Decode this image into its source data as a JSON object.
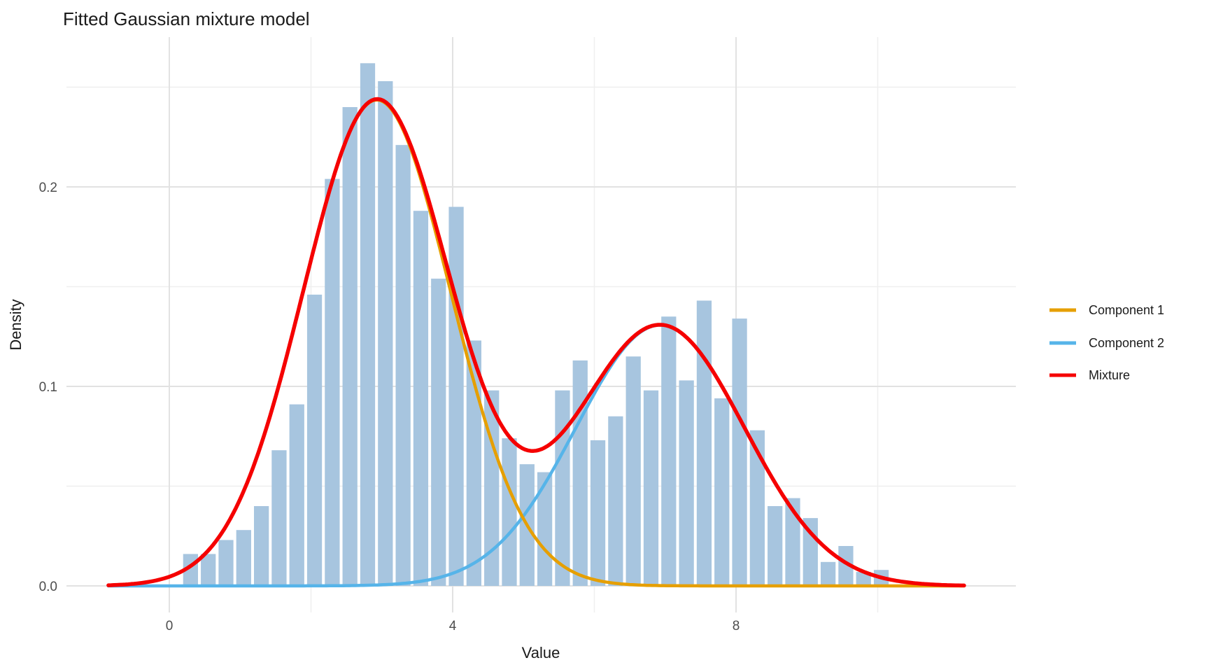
{
  "title": "Fitted Gaussian mixture model",
  "axes": {
    "x": {
      "label": "Value",
      "major_ticks": [
        0,
        4,
        8
      ],
      "minor_ticks": [
        2,
        6,
        10
      ],
      "range": [
        -1.45,
        11.85
      ]
    },
    "y": {
      "label": "Density",
      "major_ticks": [
        0.0,
        0.1,
        0.2
      ],
      "minor_ticks": [
        0.05,
        0.15,
        0.25
      ],
      "range": [
        -0.0135,
        0.2885
      ]
    }
  },
  "colors": {
    "bar_fill": "#A7C5DF",
    "component1": "#E69F00",
    "component2": "#56B4E9",
    "mixture": "#F50000",
    "grid_major": "#E2E2E2",
    "grid_minor": "#EFEFEF"
  },
  "chart_data": {
    "type": "histogram+line",
    "title": "Fitted Gaussian mixture model",
    "xlabel": "Value",
    "ylabel": "Density",
    "grid": "on",
    "legend_position": "right",
    "histogram": {
      "bin_width": 0.25,
      "fill": "#A7C5DF",
      "centers": [
        0.3,
        0.55,
        0.8,
        1.05,
        1.3,
        1.55,
        1.8,
        2.05,
        2.3,
        2.55,
        2.8,
        3.05,
        3.3,
        3.55,
        3.8,
        4.05,
        4.3,
        4.55,
        4.8,
        5.05,
        5.3,
        5.55,
        5.8,
        6.05,
        6.3,
        6.55,
        6.8,
        7.05,
        7.3,
        7.55,
        7.8,
        8.05,
        8.3,
        8.55,
        8.8,
        9.05,
        9.3,
        9.55,
        9.8,
        10.05
      ],
      "densities": [
        0.016,
        0.016,
        0.023,
        0.028,
        0.04,
        0.068,
        0.091,
        0.146,
        0.204,
        0.24,
        0.262,
        0.253,
        0.221,
        0.188,
        0.154,
        0.19,
        0.123,
        0.098,
        0.074,
        0.061,
        0.057,
        0.098,
        0.113,
        0.073,
        0.085,
        0.115,
        0.098,
        0.135,
        0.103,
        0.143,
        0.094,
        0.134,
        0.078,
        0.04,
        0.044,
        0.034,
        0.012,
        0.02,
        0.007,
        0.008
      ]
    },
    "curve_x_range": [
      -0.86,
      11.22
    ],
    "series": [
      {
        "name": "Component 1",
        "color": "#E69F00",
        "kind": "gaussian",
        "weight": 0.635,
        "mean": 2.93,
        "sd": 1.04,
        "peak_density": 0.244,
        "line_width": 4.5
      },
      {
        "name": "Component 2",
        "color": "#56B4E9",
        "kind": "gaussian",
        "weight": 0.39,
        "mean": 6.93,
        "sd": 1.19,
        "peak_density": 0.131,
        "line_width": 4.5
      },
      {
        "name": "Mixture",
        "color": "#F50000",
        "kind": "sum",
        "peak_density": 0.244,
        "valley_density": 0.068,
        "line_width": 5.5
      }
    ]
  },
  "legend": {
    "items": [
      {
        "label": "Component 1",
        "color": "#E69F00"
      },
      {
        "label": "Component 2",
        "color": "#56B4E9"
      },
      {
        "label": "Mixture",
        "color": "#F50000"
      }
    ]
  }
}
